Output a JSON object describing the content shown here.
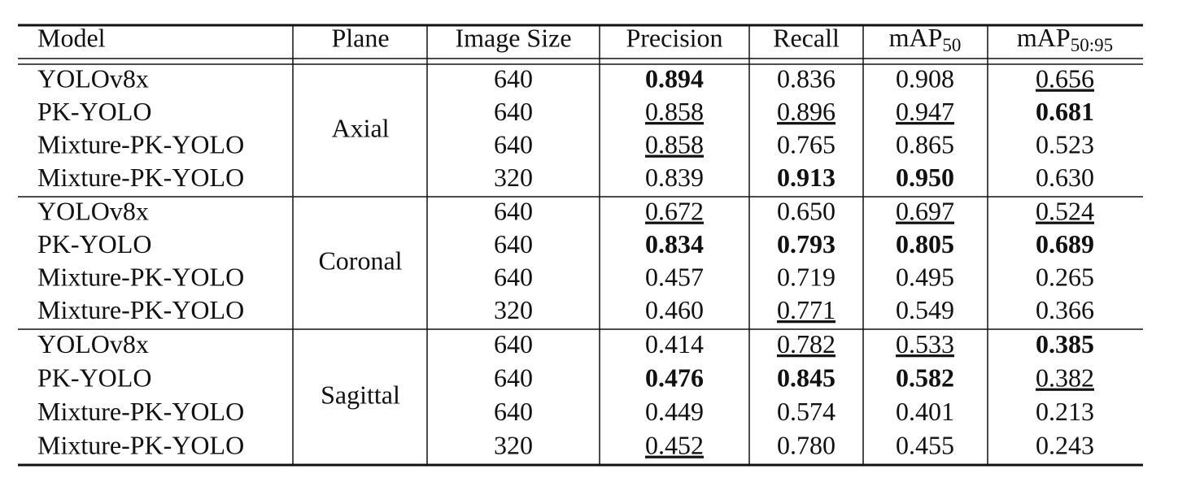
{
  "table": {
    "header": [
      "Model",
      "Plane",
      "Image Size",
      "Precision",
      "Recall",
      {
        "text": "mAP",
        "sub": "50"
      },
      {
        "text": "mAP",
        "sub": "50:95"
      }
    ],
    "groups": [
      {
        "plane": "Axial",
        "rows": [
          {
            "model": "YOLOv8x",
            "size": 640,
            "metrics": [
              "0.894",
              "0.836",
              "0.908",
              "0.656"
            ],
            "bold": [
              0
            ],
            "underline": [
              3
            ]
          },
          {
            "model": "PK-YOLO",
            "size": 640,
            "metrics": [
              "0.858",
              "0.896",
              "0.947",
              "0.681"
            ],
            "bold": [
              3
            ],
            "underline": [
              0,
              1,
              2
            ]
          },
          {
            "model": "Mixture-PK-YOLO",
            "size": 640,
            "metrics": [
              "0.858",
              "0.765",
              "0.865",
              "0.523"
            ],
            "bold": [],
            "underline": [
              0
            ]
          },
          {
            "model": "Mixture-PK-YOLO",
            "size": 320,
            "metrics": [
              "0.839",
              "0.913",
              "0.950",
              "0.630"
            ],
            "bold": [
              1,
              2
            ],
            "underline": []
          }
        ]
      },
      {
        "plane": "Coronal",
        "rows": [
          {
            "model": "YOLOv8x",
            "size": 640,
            "metrics": [
              "0.672",
              "0.650",
              "0.697",
              "0.524"
            ],
            "bold": [],
            "underline": [
              0,
              2,
              3
            ]
          },
          {
            "model": "PK-YOLO",
            "size": 640,
            "metrics": [
              "0.834",
              "0.793",
              "0.805",
              "0.689"
            ],
            "bold": [
              0,
              1,
              2,
              3
            ],
            "underline": []
          },
          {
            "model": "Mixture-PK-YOLO",
            "size": 640,
            "metrics": [
              "0.457",
              "0.719",
              "0.495",
              "0.265"
            ],
            "bold": [],
            "underline": []
          },
          {
            "model": "Mixture-PK-YOLO",
            "size": 320,
            "metrics": [
              "0.460",
              "0.771",
              "0.549",
              "0.366"
            ],
            "bold": [],
            "underline": [
              1
            ]
          }
        ]
      },
      {
        "plane": "Sagittal",
        "rows": [
          {
            "model": "YOLOv8x",
            "size": 640,
            "metrics": [
              "0.414",
              "0.782",
              "0.533",
              "0.385"
            ],
            "bold": [
              3
            ],
            "underline": [
              1,
              2
            ]
          },
          {
            "model": "PK-YOLO",
            "size": 640,
            "metrics": [
              "0.476",
              "0.845",
              "0.582",
              "0.382"
            ],
            "bold": [
              0,
              1,
              2
            ],
            "underline": [
              3
            ]
          },
          {
            "model": "Mixture-PK-YOLO",
            "size": 640,
            "metrics": [
              "0.449",
              "0.574",
              "0.401",
              "0.213"
            ],
            "bold": [],
            "underline": []
          },
          {
            "model": "Mixture-PK-YOLO",
            "size": 320,
            "metrics": [
              "0.452",
              "0.780",
              "0.455",
              "0.243"
            ],
            "bold": [],
            "underline": [
              0
            ]
          }
        ]
      }
    ]
  }
}
